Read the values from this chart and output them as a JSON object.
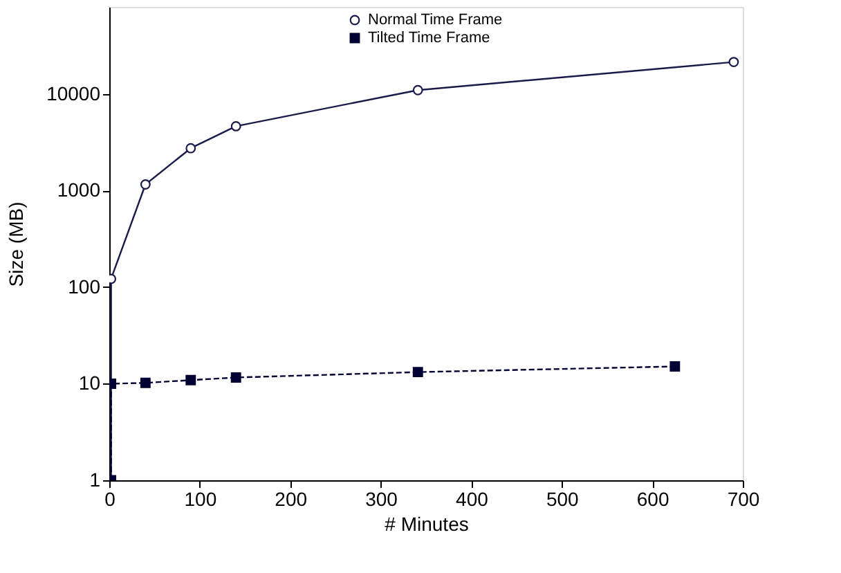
{
  "chart_data": {
    "type": "line",
    "xlabel": "# Minutes",
    "ylabel": "Size (MB)",
    "log": "y",
    "xlim": [
      0,
      700
    ],
    "xticks": [
      0,
      100,
      200,
      300,
      400,
      500,
      600,
      700
    ],
    "ylim": [
      1,
      80000
    ],
    "yticks": [
      1,
      10,
      100,
      1000,
      10000
    ],
    "grid": false,
    "legend": "top right",
    "series": [
      {
        "name": "Normal Time Frame",
        "color": "#1b1b4b",
        "marker": "circle",
        "line_style": "solid",
        "x": [
          2,
          2,
          40,
          90,
          140,
          341,
          690
        ],
        "values": [
          1,
          122,
          1160,
          2750,
          4650,
          11000,
          21500
        ]
      },
      {
        "name": "Tilted Time Frame",
        "color": "#000033",
        "marker": "square",
        "line_style": "dashed",
        "x": [
          2,
          2,
          40,
          90,
          140,
          341,
          625
        ],
        "values": [
          1,
          10,
          10.2,
          10.9,
          11.6,
          13.2,
          15.1
        ]
      }
    ]
  }
}
